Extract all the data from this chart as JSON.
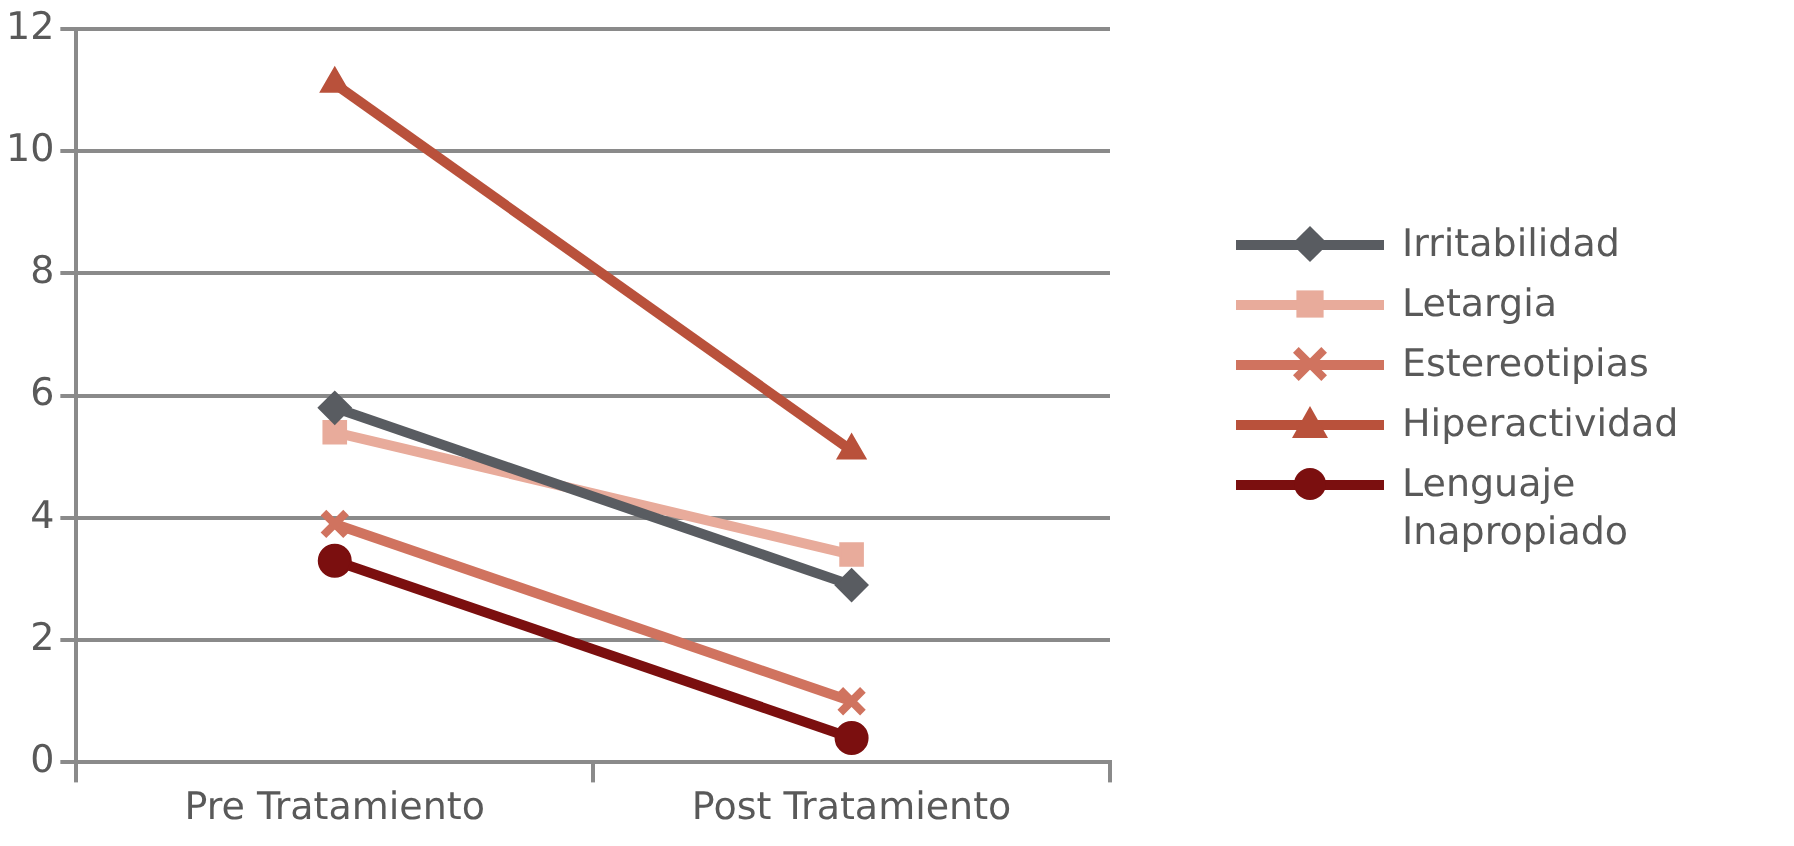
{
  "chart_data": {
    "type": "line",
    "categories": [
      "Pre Tratamiento",
      "Post Tratamiento"
    ],
    "series": [
      {
        "name": "Irritabilidad",
        "color": "#595c61",
        "marker": "diamond",
        "values": [
          5.8,
          2.9
        ]
      },
      {
        "name": "Letargia",
        "color": "#e8ab9b",
        "marker": "square",
        "values": [
          5.4,
          3.4
        ]
      },
      {
        "name": "Estereotipias",
        "color": "#d0735f",
        "marker": "cross",
        "values": [
          3.9,
          1.0
        ]
      },
      {
        "name": "Hiperactividad",
        "color": "#b9513b",
        "marker": "triangle",
        "values": [
          11.1,
          5.1
        ]
      },
      {
        "name": "Lenguaje Inapropiado",
        "color": "#7b0f0f",
        "marker": "circle",
        "values": [
          3.3,
          0.4
        ]
      }
    ],
    "ylim": [
      0,
      12
    ],
    "yticks": [
      0,
      2,
      4,
      6,
      8,
      10,
      12
    ],
    "grid": "y",
    "legend": "right",
    "line_style": "solid"
  }
}
